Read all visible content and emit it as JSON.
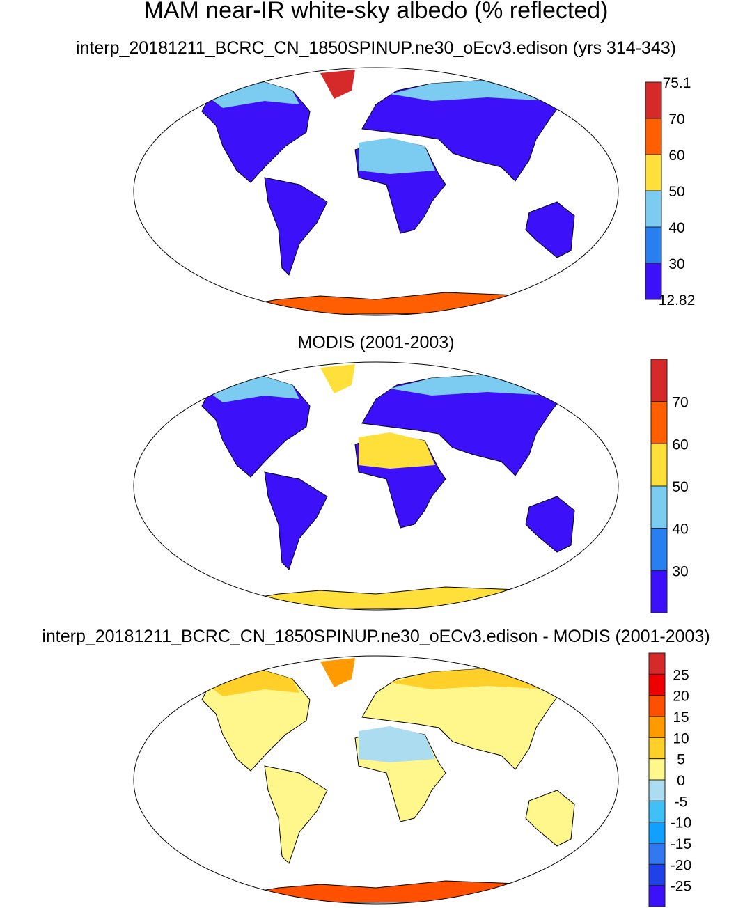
{
  "title": "MAM near-IR white-sky albedo (% reflected)",
  "chart_data": [
    {
      "type": "heatmap",
      "subtitle": "interp_20181211_BCRC_CN_1850SPINUP.ne30_oEcv3.edison (yrs 314-343)",
      "projection": "Robinson",
      "colorbar": {
        "labels": [
          "75.1",
          "70",
          "60",
          "50",
          "40",
          "30",
          "12.82"
        ],
        "colors": [
          "#d62a2a",
          "#ff5f00",
          "#ffdf3a",
          "#7ccbf0",
          "#2880f0",
          "#3c10f8"
        ]
      },
      "fills": {
        "land": "#3c10f8",
        "antarctica": "#ff5f00",
        "greenland": "#d62a2a",
        "desert": "#7ccbf0",
        "arctic": "#7ccbf0"
      }
    },
    {
      "type": "heatmap",
      "subtitle": "MODIS (2001-2003)",
      "projection": "Robinson",
      "colorbar": {
        "labels": [
          "70",
          "60",
          "50",
          "40",
          "30"
        ],
        "colors": [
          "#d62a2a",
          "#ff5f00",
          "#ffdf3a",
          "#7ccbf0",
          "#2880f0",
          "#3c10f8"
        ]
      },
      "fills": {
        "land": "#3c10f8",
        "antarctica": "#ffdf3a",
        "greenland": "#ffdf3a",
        "desert": "#ffdf3a",
        "arctic": "#7ccbf0"
      }
    },
    {
      "type": "heatmap",
      "subtitle": "interp_20181211_BCRC_CN_1850SPINUP.ne30_oECv3.edison - MODIS (2001-2003)",
      "projection": "Robinson",
      "colorbar": {
        "labels": [
          "25",
          "20",
          "15",
          "10",
          "5",
          "0",
          "-5",
          "-10",
          "-15",
          "-20",
          "-25"
        ],
        "colors": [
          "#d62a2a",
          "#ee0000",
          "#ff5000",
          "#ff9a00",
          "#ffd02a",
          "#fff68c",
          "#acdcf0",
          "#40c0f8",
          "#10a0ff",
          "#3278f0",
          "#2040e8",
          "#3c10f8"
        ]
      },
      "fills": {
        "land": "#fff68c",
        "antarctica": "#ff5000",
        "greenland": "#ff9a00",
        "desert": "#acdcf0",
        "arctic": "#ffd02a"
      }
    }
  ]
}
